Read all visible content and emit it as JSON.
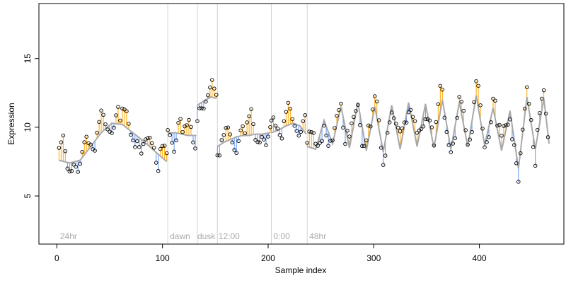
{
  "chart_data": {
    "type": "scatter",
    "title": "",
    "xlabel": "Sample index",
    "ylabel": "Expression",
    "xlim": [
      -17,
      480
    ],
    "ylim": [
      1.5,
      19
    ],
    "x_ticks": [
      0,
      100,
      200,
      300,
      400
    ],
    "y_ticks": [
      5,
      10,
      15
    ],
    "grid": false,
    "legend": "none",
    "colors": {
      "above_fit": "#ffa500",
      "below_fit": "#6495ed",
      "fit_line": "#a9a9a9",
      "points": "#000000",
      "dividers": "#d3d3d3",
      "region_labels": "#a9a9a9"
    },
    "dividers_x": [
      105,
      133,
      152,
      203,
      237
    ],
    "region_labels": [
      {
        "x": 3,
        "text": "24hr"
      },
      {
        "x": 107,
        "text": "dawn"
      },
      {
        "x": 133,
        "text": "dusk"
      },
      {
        "x": 153,
        "text": "12:00"
      },
      {
        "x": 205,
        "text": "0:00"
      },
      {
        "x": 239,
        "text": "48hr"
      }
    ],
    "fit_segments": [
      {
        "x": [
          2,
          12,
          22,
          32,
          42,
          52,
          62,
          72,
          82,
          92,
          104
        ],
        "y": [
          7.6,
          7.4,
          7.6,
          8.6,
          9.6,
          10.3,
          10.2,
          9.6,
          9.0,
          8.3,
          7.5
        ]
      },
      {
        "x": [
          105,
          112,
          118,
          124,
          132
        ],
        "y": [
          9.6,
          9.6,
          9.5,
          9.4,
          9.4
        ]
      },
      {
        "x": [
          133,
          137,
          141,
          146,
          151
        ],
        "y": [
          11.6,
          11.8,
          12.0,
          12.2,
          12.1
        ]
      },
      {
        "x": [
          152,
          158,
          164,
          170,
          176,
          182,
          188,
          194,
          202
        ],
        "y": [
          8.6,
          8.9,
          9.1,
          9.3,
          9.4,
          9.4,
          9.5,
          9.5,
          9.6
        ]
      },
      {
        "x": [
          203,
          210,
          217,
          224,
          230,
          236
        ],
        "y": [
          9.6,
          9.8,
          10.1,
          10.3,
          10.1,
          9.5
        ]
      },
      {
        "x": [
          237,
          245,
          253,
          261,
          269,
          277,
          285,
          293,
          301,
          309,
          317,
          325,
          333,
          341,
          349,
          357,
          365,
          373,
          381,
          389,
          397,
          405,
          413,
          421,
          429,
          437,
          445,
          453,
          461,
          466
        ],
        "y": [
          8.6,
          8.4,
          10.5,
          8.8,
          11.5,
          8.5,
          11.8,
          8.3,
          11.5,
          8.2,
          11.6,
          8.4,
          11.8,
          8.6,
          11.7,
          8.5,
          12.0,
          8.4,
          11.8,
          8.6,
          12.3,
          8.7,
          11.4,
          8.3,
          11.2,
          7.0,
          12.2,
          8.4,
          12.1,
          8.8
        ]
      }
    ],
    "point_deviations": [
      0.9,
      1.1,
      1.4,
      0.6,
      -0.4,
      -0.7,
      -0.9,
      -0.3,
      -0.5,
      -0.8,
      -0.2,
      0.3,
      0.7,
      1.0,
      0.5,
      0.2,
      -0.6,
      -0.9,
      0.4,
      0.8,
      1.2,
      0.9,
      0.3,
      -0.2,
      -0.7,
      -1.1,
      -0.4,
      0.6,
      1.0,
      0.2
    ]
  }
}
